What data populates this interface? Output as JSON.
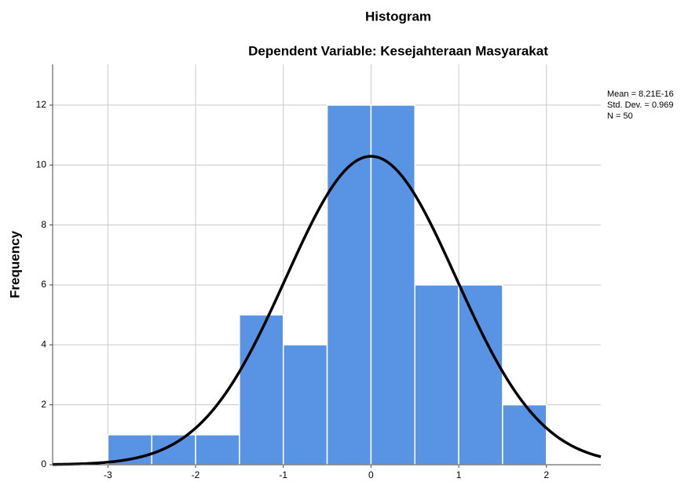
{
  "chart_data": {
    "type": "histogram",
    "title": "Histogram",
    "subtitle": "Dependent Variable: Kesejahteraan Masyarakat",
    "ylabel": "Frequency",
    "bins": [
      -3,
      -2.5,
      -2,
      -1.5,
      -1,
      -0.5,
      0,
      0.5,
      1,
      1.5,
      2
    ],
    "counts": [
      1,
      1,
      1,
      5,
      4,
      12,
      12,
      6,
      6,
      2
    ],
    "color": "#5894e3",
    "xlim": [
      -3.63,
      2.62
    ],
    "ylim": [
      0,
      13.36
    ],
    "xticks": [
      -3,
      -2,
      -1,
      0,
      1,
      2
    ],
    "yticks": [
      0,
      2,
      4,
      6,
      8,
      10,
      12
    ],
    "grid": true,
    "normal": {
      "mean": 8.21e-16,
      "std": 0.969,
      "n": 50
    },
    "stats_text": [
      "Mean = 8.21E-16",
      "Std. Dev. = 0.969",
      "N = 50"
    ]
  }
}
